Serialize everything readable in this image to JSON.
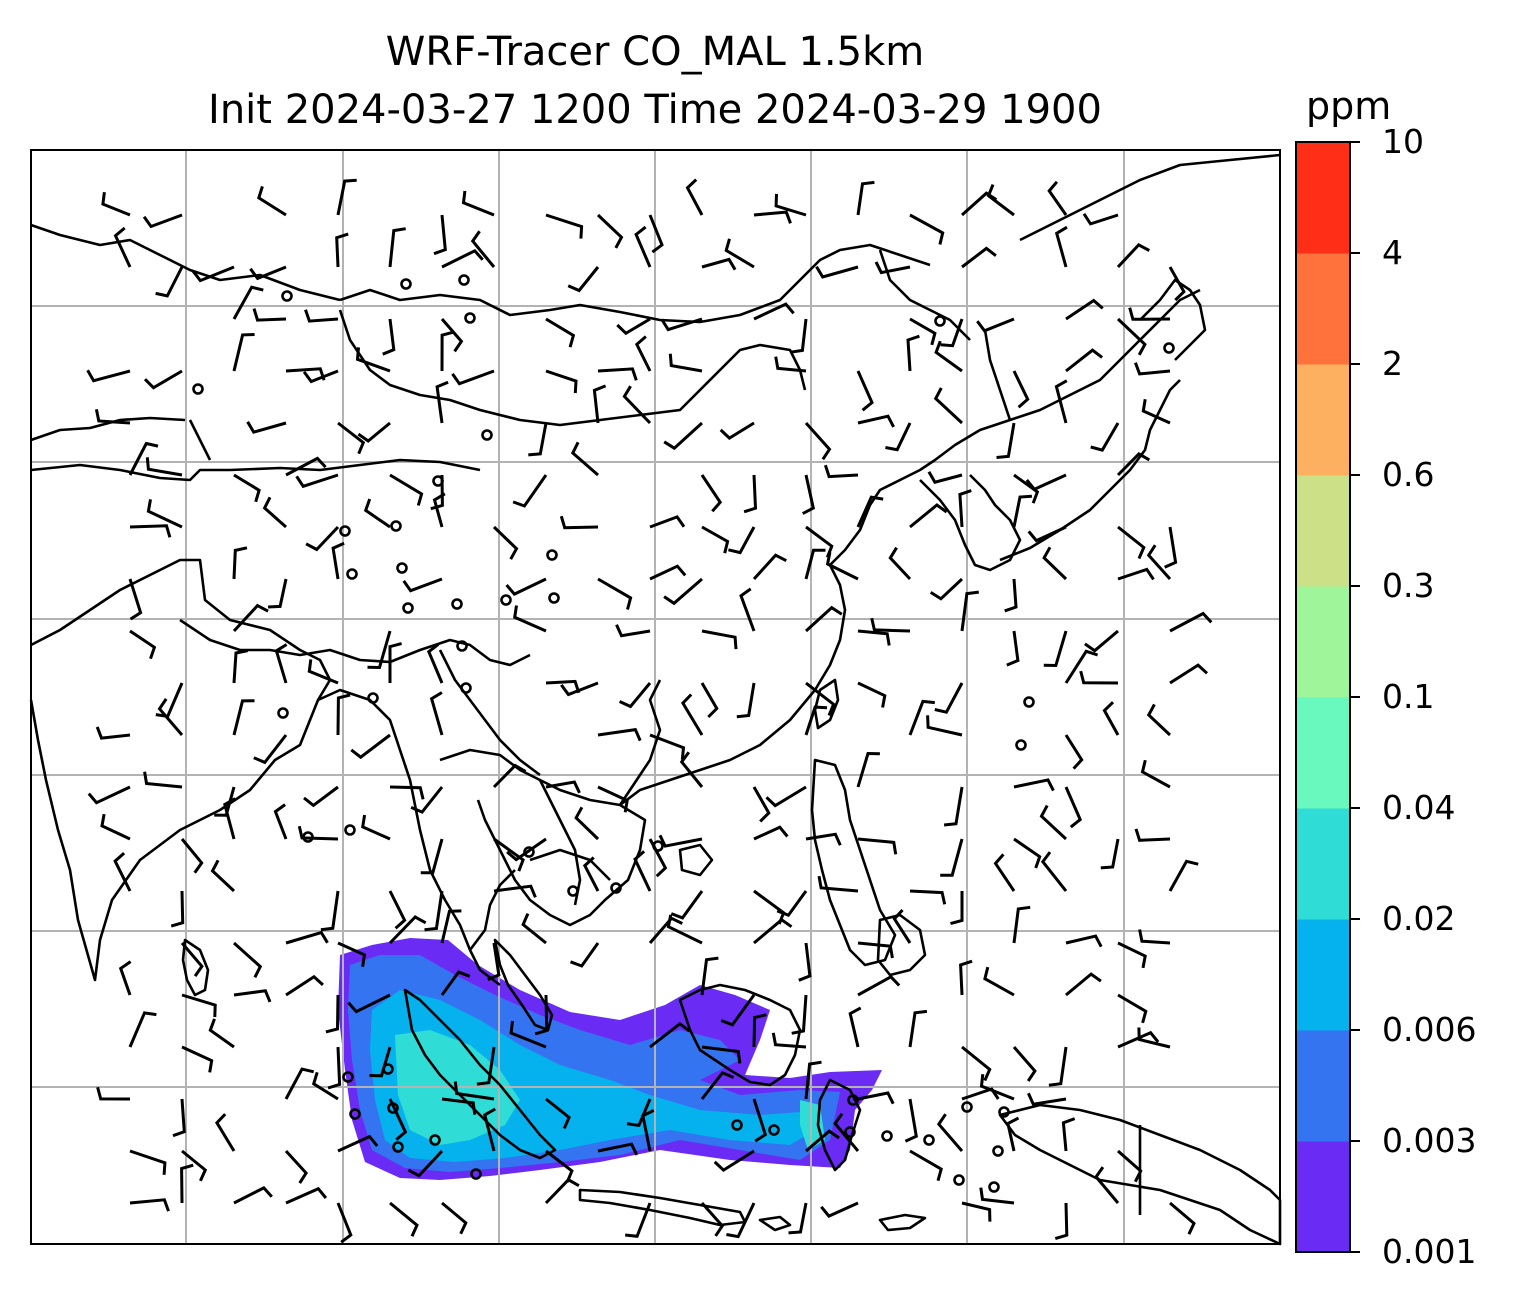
{
  "title": {
    "line1": "WRF-Tracer CO_MAL 1.5km",
    "line2": "Init 2024-03-27 1200 Time 2024-03-29 1900"
  },
  "colorbar": {
    "unit": "ppm",
    "ticks": [
      "0.001",
      "0.003",
      "0.006",
      "0.02",
      "0.04",
      "0.1",
      "0.3",
      "0.6",
      "2",
      "4",
      "10"
    ],
    "colors": [
      "#6a2cf5",
      "#3574f0",
      "#05b2ee",
      "#2fddd6",
      "#69f8be",
      "#9ef59a",
      "#cce088",
      "#fdb05f",
      "#ff723c",
      "#ff2e17"
    ]
  },
  "map": {
    "gridlines": true,
    "coastline_color": "#000000",
    "grid_color": "#b3b3b3",
    "wind_barb_color": "#000000"
  }
}
